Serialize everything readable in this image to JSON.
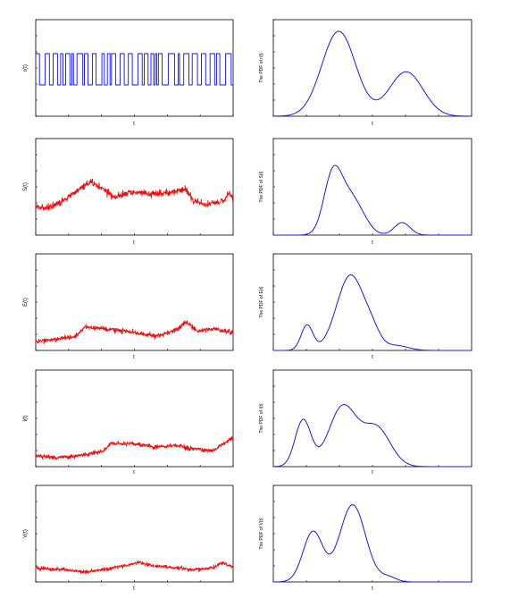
{
  "chart_data": [
    {
      "type": "line",
      "id": "r",
      "ylabel": "r(t)",
      "xlabel": "t",
      "color": "#1010ee",
      "right": {
        "ylabel": "The PDF of r(t)"
      }
    },
    {
      "type": "line",
      "id": "s",
      "ylabel": "S(t)",
      "xlabel": "t",
      "color": "#ee1010",
      "right": {
        "ylabel": "The PDF of S(t)"
      }
    },
    {
      "type": "line",
      "id": "e",
      "ylabel": "E(t)",
      "xlabel": "t",
      "color": "#ee1010",
      "right": {
        "ylabel": "The PDF of E(t)"
      }
    },
    {
      "type": "line",
      "id": "i",
      "ylabel": "I(t)",
      "xlabel": "t",
      "color": "#ee1010",
      "right": {
        "ylabel": "The PDF of I(t)"
      }
    },
    {
      "type": "line",
      "id": "v",
      "ylabel": "V(t)",
      "xlabel": "t",
      "color": "#ee1010",
      "right": {
        "ylabel": "The PDF of V(t)"
      }
    }
  ],
  "pdf_color": "#1a1ae6"
}
